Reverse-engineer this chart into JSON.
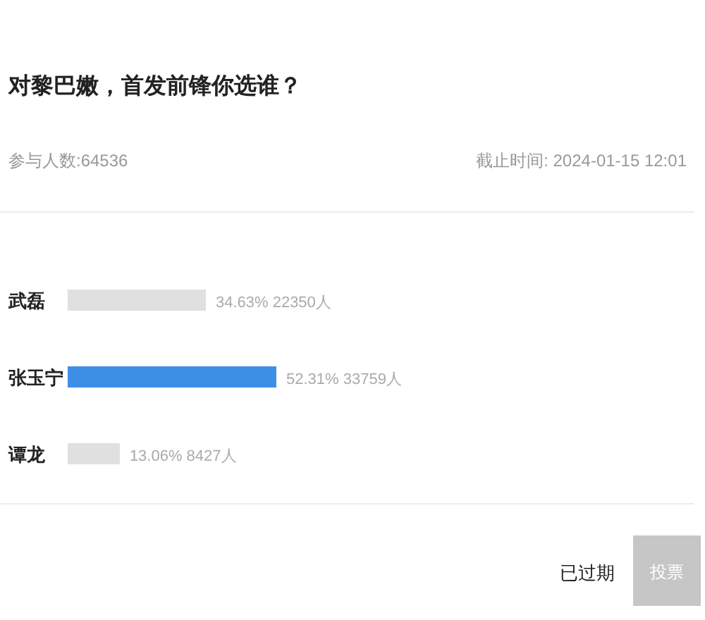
{
  "chart_data": {
    "type": "bar",
    "orientation": "horizontal",
    "title": "对黎巴嫩，首发前锋你选谁？",
    "subtitle": "参与人数:64536",
    "annotations": [
      "截止时间: 2024-01-15 12:01",
      "已过期",
      "投票"
    ],
    "categories": [
      "武磊",
      "张玉宁",
      "谭龙"
    ],
    "values": [
      34.63,
      52.31,
      13.06
    ],
    "colors": [
      "#e0e0e0",
      "#3d8fe6",
      "#e0e0e0"
    ],
    "value_labels": [
      "34.63% 22350人",
      "52.31% 33759人",
      "13.06% 8427人"
    ]
  }
}
